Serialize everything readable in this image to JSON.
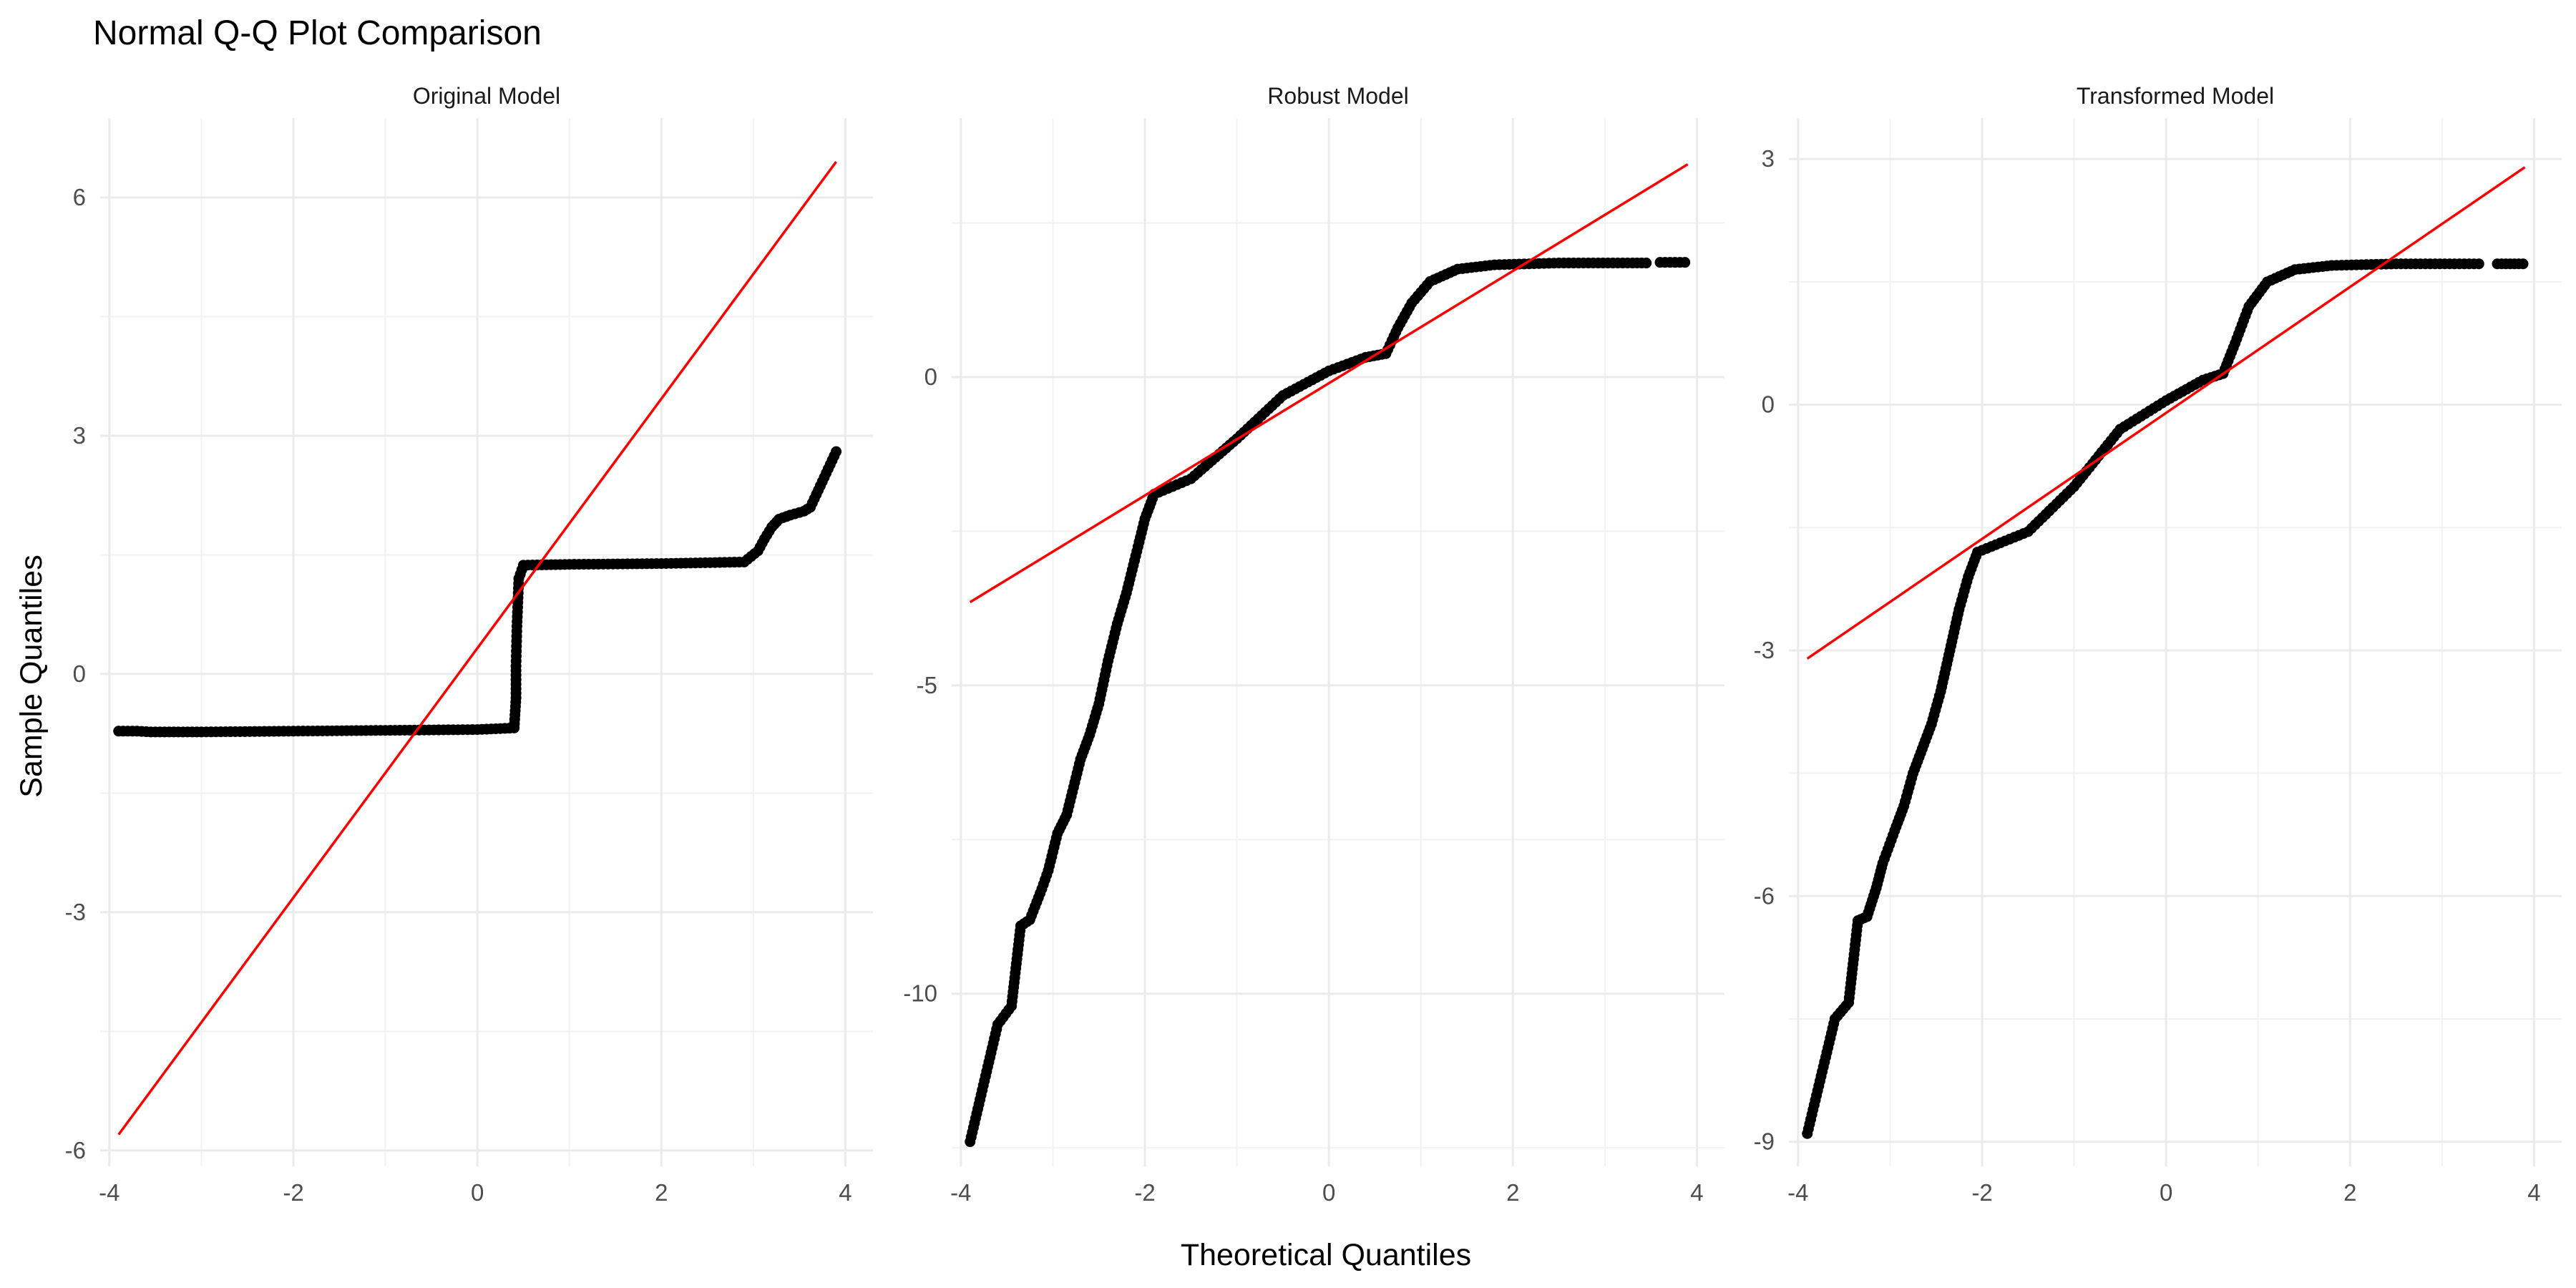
{
  "chart_data": {
    "type": "scatter",
    "title": "Normal Q-Q Plot Comparison",
    "xlabel": "Theoretical Quantiles",
    "ylabel": "Sample Quantiles",
    "grid": true,
    "legend": "none",
    "colors": {
      "points": "#000000",
      "reference_line": "#ff0000",
      "grid": "#ebebeb"
    },
    "panels": [
      {
        "name": "Original Model",
        "xlim": [
          -4.1,
          4.3
        ],
        "ylim": [
          -6.2,
          7.0
        ],
        "x_ticks": [
          -4,
          -2,
          0,
          2,
          4
        ],
        "y_ticks": [
          -6,
          -3,
          0,
          3,
          6
        ],
        "reference_line": {
          "x": [
            -3.9,
            3.9
          ],
          "y": [
            -5.8,
            6.45
          ]
        },
        "point_segments": [
          [
            [
              -3.9,
              -0.72
            ],
            [
              -3.7,
              -0.72
            ],
            [
              -3.55,
              -0.73
            ],
            [
              -3.0,
              -0.73
            ],
            [
              -2.0,
              -0.72
            ],
            [
              -1.0,
              -0.71
            ],
            [
              0.0,
              -0.7
            ],
            [
              0.4,
              -0.68
            ],
            [
              0.42,
              -0.3
            ],
            [
              0.42,
              0.1
            ],
            [
              0.43,
              0.6
            ],
            [
              0.45,
              1.2
            ],
            [
              0.5,
              1.37
            ],
            [
              1.0,
              1.38
            ],
            [
              2.0,
              1.39
            ],
            [
              2.9,
              1.41
            ],
            [
              3.05,
              1.55
            ],
            [
              3.12,
              1.7
            ],
            [
              3.2,
              1.85
            ],
            [
              3.28,
              1.95
            ],
            [
              3.4,
              2.0
            ],
            [
              3.55,
              2.05
            ],
            [
              3.62,
              2.1
            ],
            [
              3.9,
              2.8
            ]
          ]
        ]
      },
      {
        "name": "Robust Model",
        "xlim": [
          -4.1,
          4.3
        ],
        "ylim": [
          -12.8,
          4.2
        ],
        "x_ticks": [
          -4,
          -2,
          0,
          2,
          4
        ],
        "y_ticks": [
          -10,
          -5,
          0
        ],
        "reference_line": {
          "x": [
            -3.9,
            3.9
          ],
          "y": [
            -3.65,
            3.45
          ]
        },
        "point_segments": [
          [
            [
              -3.9,
              -12.4
            ],
            [
              -3.6,
              -10.5
            ],
            [
              -3.45,
              -10.2
            ],
            [
              -3.35,
              -8.9
            ],
            [
              -3.25,
              -8.8
            ],
            [
              -3.12,
              -8.3
            ],
            [
              -3.05,
              -8.0
            ],
            [
              -2.95,
              -7.4
            ],
            [
              -2.85,
              -7.1
            ],
            [
              -2.75,
              -6.5
            ],
            [
              -2.7,
              -6.2
            ],
            [
              -2.6,
              -5.8
            ],
            [
              -2.5,
              -5.3
            ],
            [
              -2.4,
              -4.6
            ],
            [
              -2.3,
              -4.0
            ],
            [
              -2.2,
              -3.5
            ],
            [
              -2.1,
              -2.9
            ],
            [
              -2.0,
              -2.3
            ],
            [
              -1.9,
              -1.9
            ],
            [
              -1.5,
              -1.65
            ],
            [
              -1.0,
              -1.0
            ],
            [
              -0.5,
              -0.3
            ],
            [
              0.0,
              0.1
            ],
            [
              0.4,
              0.32
            ],
            [
              0.62,
              0.38
            ],
            [
              0.75,
              0.8
            ],
            [
              0.9,
              1.2
            ],
            [
              1.1,
              1.55
            ],
            [
              1.4,
              1.75
            ],
            [
              1.8,
              1.82
            ],
            [
              2.5,
              1.85
            ],
            [
              3.3,
              1.85
            ],
            [
              3.45,
              1.85
            ]
          ],
          [
            [
              3.6,
              1.86
            ],
            [
              3.87,
              1.86
            ]
          ]
        ]
      },
      {
        "name": "Transformed Model",
        "xlim": [
          -4.1,
          4.3
        ],
        "ylim": [
          -9.3,
          3.5
        ],
        "x_ticks": [
          -4,
          -2,
          0,
          2,
          4
        ],
        "y_ticks": [
          -9,
          -6,
          -3,
          0,
          3
        ],
        "reference_line": {
          "x": [
            -3.9,
            3.9
          ],
          "y": [
            -3.1,
            2.9
          ]
        },
        "point_segments": [
          [
            [
              -3.9,
              -8.9
            ],
            [
              -3.6,
              -7.5
            ],
            [
              -3.45,
              -7.3
            ],
            [
              -3.35,
              -6.3
            ],
            [
              -3.25,
              -6.25
            ],
            [
              -3.15,
              -5.9
            ],
            [
              -3.08,
              -5.6
            ],
            [
              -2.95,
              -5.2
            ],
            [
              -2.85,
              -4.9
            ],
            [
              -2.75,
              -4.5
            ],
            [
              -2.65,
              -4.2
            ],
            [
              -2.55,
              -3.9
            ],
            [
              -2.45,
              -3.5
            ],
            [
              -2.35,
              -3.0
            ],
            [
              -2.25,
              -2.5
            ],
            [
              -2.15,
              -2.1
            ],
            [
              -2.05,
              -1.8
            ],
            [
              -1.5,
              -1.55
            ],
            [
              -1.0,
              -1.0
            ],
            [
              -0.5,
              -0.3
            ],
            [
              0.0,
              0.05
            ],
            [
              0.4,
              0.3
            ],
            [
              0.62,
              0.38
            ],
            [
              0.75,
              0.75
            ],
            [
              0.9,
              1.2
            ],
            [
              1.1,
              1.5
            ],
            [
              1.4,
              1.65
            ],
            [
              1.8,
              1.7
            ],
            [
              2.5,
              1.72
            ],
            [
              3.4,
              1.72
            ]
          ],
          [
            [
              3.6,
              1.72
            ],
            [
              3.88,
              1.72
            ]
          ]
        ]
      }
    ]
  }
}
